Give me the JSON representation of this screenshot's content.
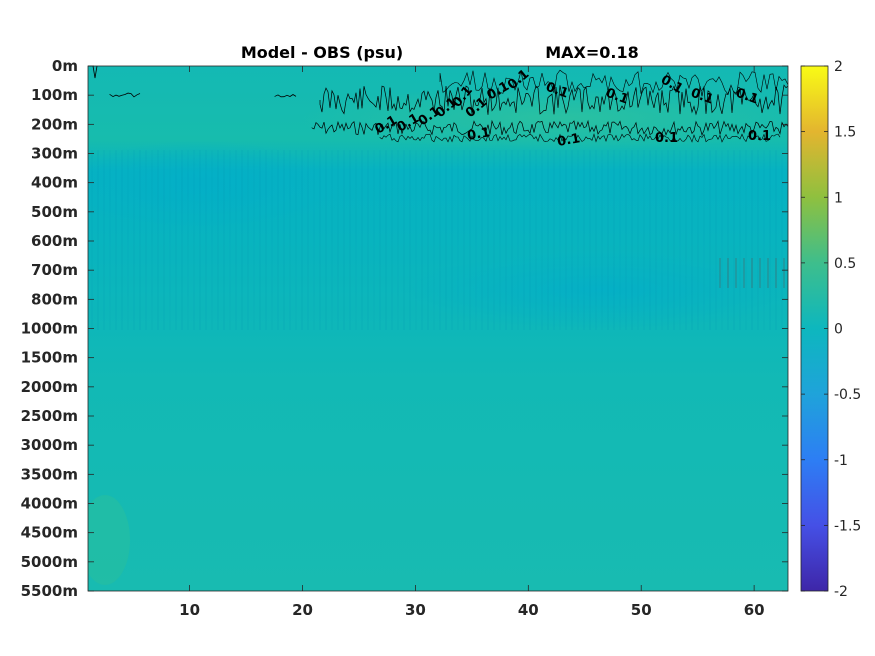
{
  "chart_data": {
    "type": "heatmap",
    "title": "Model - OBS (psu)",
    "annotation": "MAX=0.18",
    "xlabel": "",
    "ylabel": "",
    "xlim": [
      1,
      63
    ],
    "x_ticks": [
      10,
      20,
      30,
      40,
      50,
      60
    ],
    "y_ticks": [
      "0m",
      "100m",
      "200m",
      "300m",
      "400m",
      "500m",
      "600m",
      "700m",
      "800m",
      "1000m",
      "1500m",
      "2000m",
      "2500m",
      "3000m",
      "3500m",
      "4000m",
      "4500m",
      "5000m",
      "5500m"
    ],
    "colorbar": {
      "colormap": "parula",
      "clim": [
        -2,
        2
      ],
      "ticks": [
        "2",
        "1.5",
        "1",
        "0.5",
        "0",
        "-0.5",
        "-1",
        "-1.5",
        "-2"
      ]
    },
    "contour_level": 0.1,
    "contour_labels": [
      "0.1",
      "0.1",
      "0.1",
      "0.1",
      "0.1",
      "0.1",
      "0.1",
      "0.1",
      "0.1",
      "0.1",
      "0.1",
      "0.1",
      "0.1",
      "0.1",
      "0.1",
      "0.1",
      "0.1"
    ],
    "field_summary": [
      {
        "depth": "0m",
        "value": 0.04
      },
      {
        "depth": "100m",
        "value": 0.08
      },
      {
        "depth": "200m",
        "value": 0.12
      },
      {
        "depth": "300m",
        "value": -0.02
      },
      {
        "depth": "400m",
        "value": -0.03
      },
      {
        "depth": "500m",
        "value": -0.02
      },
      {
        "depth": "700m",
        "value": -0.03
      },
      {
        "depth": "1000m",
        "value": 0.0
      },
      {
        "depth": "2000m",
        "value": 0.02
      },
      {
        "depth": "5500m",
        "value": 0.03
      }
    ],
    "grid": false
  }
}
